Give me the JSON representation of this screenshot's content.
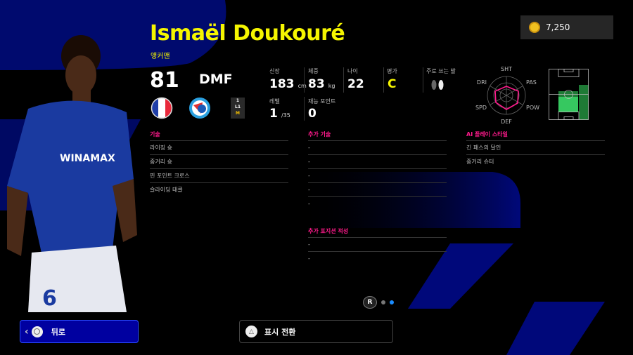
{
  "player": {
    "name": "Ismaël Doukouré",
    "playstyle": "앵커맨",
    "rating": "81",
    "position": "DMF"
  },
  "coins": {
    "value": "7,250",
    "icon": "coin-icon"
  },
  "stats": {
    "height": {
      "label": "신장",
      "value": "183",
      "unit": "cm"
    },
    "weight": {
      "label": "체중",
      "value": "83",
      "unit": "kg"
    },
    "age": {
      "label": "나이",
      "value": "22"
    },
    "grade": {
      "label": "평가",
      "value": "C"
    },
    "foot": {
      "label": "주로 쓰는 발",
      "icon": "feet-icon"
    },
    "level": {
      "label": "레벨",
      "value": "1",
      "max": "/35"
    },
    "talent": {
      "label": "재능 포인트",
      "value": "0"
    }
  },
  "radar": {
    "labels": [
      "SHT",
      "PAS",
      "POW",
      "DEF",
      "SPD",
      "DRI"
    ],
    "color": "#ff1a8c"
  },
  "skills": {
    "title": "기술",
    "items": [
      "라이징 슛",
      "중거리 슛",
      "핀 포인트 크로스",
      "슬라이딩 태클"
    ]
  },
  "extra_skills": {
    "title": "추가 기술",
    "items": [
      "-",
      "-",
      "-",
      "-",
      "-"
    ]
  },
  "extra_positions": {
    "title": "추가 포지션 적성",
    "items": [
      "-",
      "-"
    ]
  },
  "ai_styles": {
    "title": "AI 플레이 스타일",
    "items": [
      "긴 패스의 달인",
      "중거리 슈터"
    ]
  },
  "nav": {
    "r_label": "R",
    "back": "뒤로",
    "toggle": "표시 전환"
  },
  "colors": {
    "accent": "#ff1a8c",
    "name": "#f5f500",
    "blue": "#00008f"
  }
}
